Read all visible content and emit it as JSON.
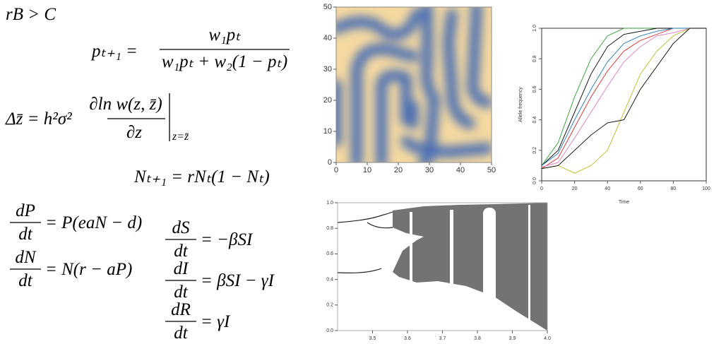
{
  "equations": {
    "hamilton": "rB > C",
    "replicator": {
      "lhs": "pₜ₊₁ =",
      "numerator": "w₁pₜ",
      "denominator": "w₁pₜ + w₂(1 − pₜ)"
    },
    "lande": {
      "lhs": "Δz̄ = h²σ²",
      "numerator": "∂ln w(z, z̄)",
      "denominator": "∂z",
      "evaluated_at": "z=z̄"
    },
    "logistic": "Nₜ₊₁ = rNₜ(1 − Nₜ)",
    "predator_prey": [
      {
        "numerator": "dP",
        "denominator": "dt",
        "rhs": "= P(eaN − d)"
      },
      {
        "numerator": "dN",
        "denominator": "dt",
        "rhs": "= N(r − aP)"
      }
    ],
    "sir": [
      {
        "numerator": "dS",
        "denominator": "dt",
        "rhs": "= −βSI"
      },
      {
        "numerator": "dI",
        "denominator": "dt",
        "rhs": "= βSI − γI"
      },
      {
        "numerator": "dR",
        "denominator": "dt",
        "rhs": "= γI"
      }
    ]
  },
  "chart_data": [
    {
      "type": "heatmap",
      "xlim": [
        0,
        50
      ],
      "ylim": [
        0,
        50
      ],
      "xticks": [
        0,
        10,
        20,
        30,
        40,
        50
      ],
      "yticks": [
        0,
        10,
        20,
        30,
        40,
        50
      ]
    },
    {
      "type": "line",
      "xlabel": "Time",
      "ylabel": "Allele frequency",
      "x": [
        0,
        10,
        20,
        30,
        40,
        50,
        60,
        70,
        80,
        90,
        100
      ],
      "series": [
        {
          "color": "#2ca02c",
          "values": [
            0.1,
            0.25,
            0.55,
            0.8,
            0.95,
            1,
            1,
            1,
            1,
            1,
            1
          ]
        },
        {
          "color": "#000000",
          "values": [
            0.1,
            0.2,
            0.45,
            0.7,
            0.88,
            0.96,
            0.98,
            1,
            1,
            1,
            1
          ]
        },
        {
          "color": "#d62728",
          "values": [
            0.08,
            0.15,
            0.35,
            0.55,
            0.72,
            0.85,
            0.92,
            0.96,
            1,
            1,
            1
          ]
        },
        {
          "color": "#1f77b4",
          "values": [
            0.1,
            0.18,
            0.4,
            0.6,
            0.78,
            0.9,
            0.95,
            0.98,
            1,
            1,
            1
          ]
        },
        {
          "color": "#e377c2",
          "values": [
            0.09,
            0.12,
            0.28,
            0.45,
            0.62,
            0.78,
            0.88,
            0.95,
            0.97,
            1,
            1
          ]
        },
        {
          "color": "#bcbd22",
          "values": [
            0.08,
            0.1,
            0.05,
            0.1,
            0.2,
            0.45,
            0.7,
            0.85,
            0.95,
            1,
            1
          ]
        },
        {
          "color": "#000000",
          "values": [
            0.08,
            0.1,
            0.2,
            0.3,
            0.38,
            0.4,
            0.6,
            0.75,
            0.9,
            1,
            1
          ]
        }
      ],
      "xlim": [
        0,
        100
      ],
      "ylim": [
        0,
        1
      ],
      "xticks": [
        0,
        20,
        40,
        60,
        80,
        100
      ],
      "yticks": [
        {
          "value": 0,
          "label": "0.0"
        },
        {
          "value": 0.2,
          "label": "0.2"
        },
        {
          "value": 0.4,
          "label": "0.4"
        },
        {
          "value": 0.6,
          "label": "0.6"
        },
        {
          "value": 0.8,
          "label": "0.8"
        },
        {
          "value": 1,
          "label": "1.0"
        }
      ]
    },
    {
      "type": "bifurcation",
      "xlim": [
        3.4,
        4.0
      ],
      "ylim": [
        0,
        1
      ],
      "xticks": [
        3.5,
        3.6,
        3.7,
        3.8,
        3.9,
        {
          "value": 4,
          "label": "4.0"
        }
      ],
      "yticks": [
        {
          "value": 0,
          "label": "0.0"
        },
        {
          "value": 0.2,
          "label": "0.2"
        },
        {
          "value": 0.4,
          "label": "0.4"
        },
        {
          "value": 0.6,
          "label": "0.6"
        },
        {
          "value": 0.8,
          "label": "0.8"
        },
        {
          "value": 1,
          "label": "1.0"
        }
      ]
    }
  ]
}
